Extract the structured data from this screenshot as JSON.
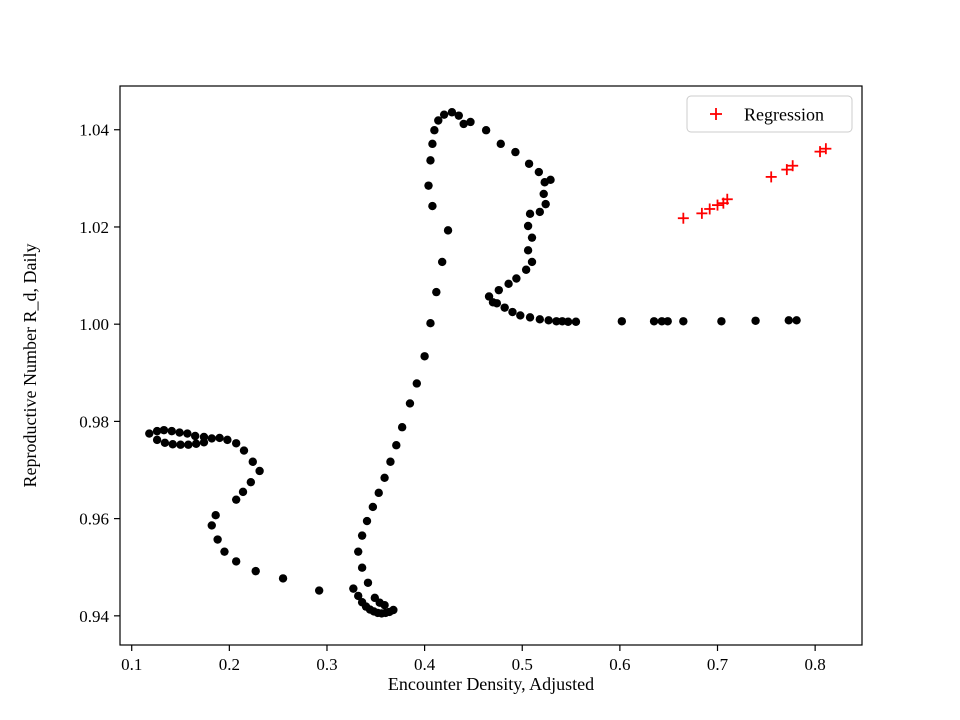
{
  "chart_data": {
    "type": "scatter",
    "title": "",
    "xlabel": "Encounter Density, Adjusted",
    "ylabel": "Reproductive Number R_d, Daily",
    "xlim": [
      0.088,
      0.848
    ],
    "ylim": [
      0.934,
      1.049
    ],
    "grid": false,
    "xticks": {
      "values": [
        0.1,
        0.2,
        0.3,
        0.4,
        0.5,
        0.6,
        0.7,
        0.8
      ],
      "labels": [
        "0.1",
        "0.2",
        "0.3",
        "0.4",
        "0.5",
        "0.6",
        "0.7",
        "0.8"
      ]
    },
    "yticks": {
      "values": [
        0.94,
        0.96,
        0.98,
        1.0,
        1.02,
        1.04
      ],
      "labels": [
        "0.94",
        "0.96",
        "0.98",
        "1.00",
        "1.02",
        "1.04"
      ]
    },
    "legend": {
      "position": "upper right",
      "entries": [
        {
          "label": "Regression",
          "marker": "plus",
          "color": "#ff0000"
        }
      ]
    },
    "series": [
      {
        "name": "trajectory",
        "marker": "circle",
        "color": "#000000",
        "size": 4.2,
        "points": [
          [
            0.118,
            0.9775
          ],
          [
            0.126,
            0.978
          ],
          [
            0.133,
            0.9782
          ],
          [
            0.141,
            0.978
          ],
          [
            0.149,
            0.9777
          ],
          [
            0.157,
            0.9775
          ],
          [
            0.165,
            0.977
          ],
          [
            0.174,
            0.9768
          ],
          [
            0.182,
            0.9765
          ],
          [
            0.126,
            0.9762
          ],
          [
            0.134,
            0.9756
          ],
          [
            0.142,
            0.9753
          ],
          [
            0.15,
            0.9752
          ],
          [
            0.158,
            0.9752
          ],
          [
            0.166,
            0.9754
          ],
          [
            0.174,
            0.9757
          ],
          [
            0.19,
            0.9766
          ],
          [
            0.198,
            0.9762
          ],
          [
            0.207,
            0.9755
          ],
          [
            0.215,
            0.974
          ],
          [
            0.224,
            0.9717
          ],
          [
            0.231,
            0.9698
          ],
          [
            0.222,
            0.9675
          ],
          [
            0.214,
            0.9655
          ],
          [
            0.207,
            0.9639
          ],
          [
            0.186,
            0.9607
          ],
          [
            0.182,
            0.9586
          ],
          [
            0.188,
            0.9557
          ],
          [
            0.195,
            0.9532
          ],
          [
            0.207,
            0.9512
          ],
          [
            0.227,
            0.9492
          ],
          [
            0.255,
            0.9477
          ],
          [
            0.292,
            0.9452
          ],
          [
            0.327,
            0.9456
          ],
          [
            0.332,
            0.9441
          ],
          [
            0.336,
            0.9428
          ],
          [
            0.34,
            0.9419
          ],
          [
            0.344,
            0.9413
          ],
          [
            0.348,
            0.9409
          ],
          [
            0.352,
            0.9406
          ],
          [
            0.356,
            0.9405
          ],
          [
            0.36,
            0.9406
          ],
          [
            0.364,
            0.9408
          ],
          [
            0.368,
            0.9412
          ],
          [
            0.359,
            0.9422
          ],
          [
            0.354,
            0.9427
          ],
          [
            0.349,
            0.9437
          ],
          [
            0.342,
            0.9468
          ],
          [
            0.336,
            0.9499
          ],
          [
            0.332,
            0.9532
          ],
          [
            0.336,
            0.9565
          ],
          [
            0.341,
            0.9595
          ],
          [
            0.347,
            0.9624
          ],
          [
            0.353,
            0.9653
          ],
          [
            0.359,
            0.9684
          ],
          [
            0.365,
            0.9717
          ],
          [
            0.371,
            0.9751
          ],
          [
            0.377,
            0.9788
          ],
          [
            0.385,
            0.9837
          ],
          [
            0.392,
            0.9878
          ],
          [
            0.4,
            0.9934
          ],
          [
            0.406,
            1.0002
          ],
          [
            0.412,
            1.0066
          ],
          [
            0.418,
            1.0128
          ],
          [
            0.424,
            1.0193
          ],
          [
            0.408,
            1.0243
          ],
          [
            0.404,
            1.0285
          ],
          [
            0.406,
            1.0337
          ],
          [
            0.408,
            1.0371
          ],
          [
            0.41,
            1.0399
          ],
          [
            0.414,
            1.0419
          ],
          [
            0.42,
            1.0431
          ],
          [
            0.428,
            1.0436
          ],
          [
            0.435,
            1.0429
          ],
          [
            0.44,
            1.0412
          ],
          [
            0.447,
            1.0416
          ],
          [
            0.463,
            1.0399
          ],
          [
            0.478,
            1.0371
          ],
          [
            0.493,
            1.0354
          ],
          [
            0.507,
            1.033
          ],
          [
            0.517,
            1.0313
          ],
          [
            0.523,
            1.0292
          ],
          [
            0.529,
            1.0297
          ],
          [
            0.522,
            1.0268
          ],
          [
            0.524,
            1.0247
          ],
          [
            0.518,
            1.0231
          ],
          [
            0.508,
            1.0227
          ],
          [
            0.506,
            1.0202
          ],
          [
            0.51,
            1.0178
          ],
          [
            0.506,
            1.0152
          ],
          [
            0.51,
            1.0128
          ],
          [
            0.504,
            1.0112
          ],
          [
            0.494,
            1.0094
          ],
          [
            0.486,
            1.0083
          ],
          [
            0.476,
            1.007
          ],
          [
            0.466,
            1.0057
          ],
          [
            0.47,
            1.0045
          ],
          [
            0.474,
            1.0043
          ],
          [
            0.482,
            1.0034
          ],
          [
            0.49,
            1.0025
          ],
          [
            0.498,
            1.0018
          ],
          [
            0.508,
            1.0014
          ],
          [
            0.518,
            1.001
          ],
          [
            0.527,
            1.0008
          ],
          [
            0.535,
            1.0006
          ],
          [
            0.541,
            1.0006
          ],
          [
            0.547,
            1.0005
          ],
          [
            0.555,
            1.0005
          ],
          [
            0.602,
            1.0006
          ],
          [
            0.635,
            1.0006
          ],
          [
            0.643,
            1.0006
          ],
          [
            0.649,
            1.0006
          ],
          [
            0.665,
            1.0006
          ],
          [
            0.704,
            1.0006
          ],
          [
            0.739,
            1.0007
          ],
          [
            0.773,
            1.0008
          ],
          [
            0.781,
            1.0008
          ]
        ]
      },
      {
        "name": "Regression",
        "marker": "plus",
        "color": "#ff0000",
        "size": 5.5,
        "points": [
          [
            0.665,
            1.0218
          ],
          [
            0.684,
            1.0228
          ],
          [
            0.692,
            1.0237
          ],
          [
            0.7,
            1.0245
          ],
          [
            0.706,
            1.0249
          ],
          [
            0.71,
            1.0257
          ],
          [
            0.755,
            1.0303
          ],
          [
            0.771,
            1.0318
          ],
          [
            0.777,
            1.0326
          ],
          [
            0.805,
            1.0355
          ],
          [
            0.811,
            1.0361
          ]
        ]
      }
    ]
  }
}
